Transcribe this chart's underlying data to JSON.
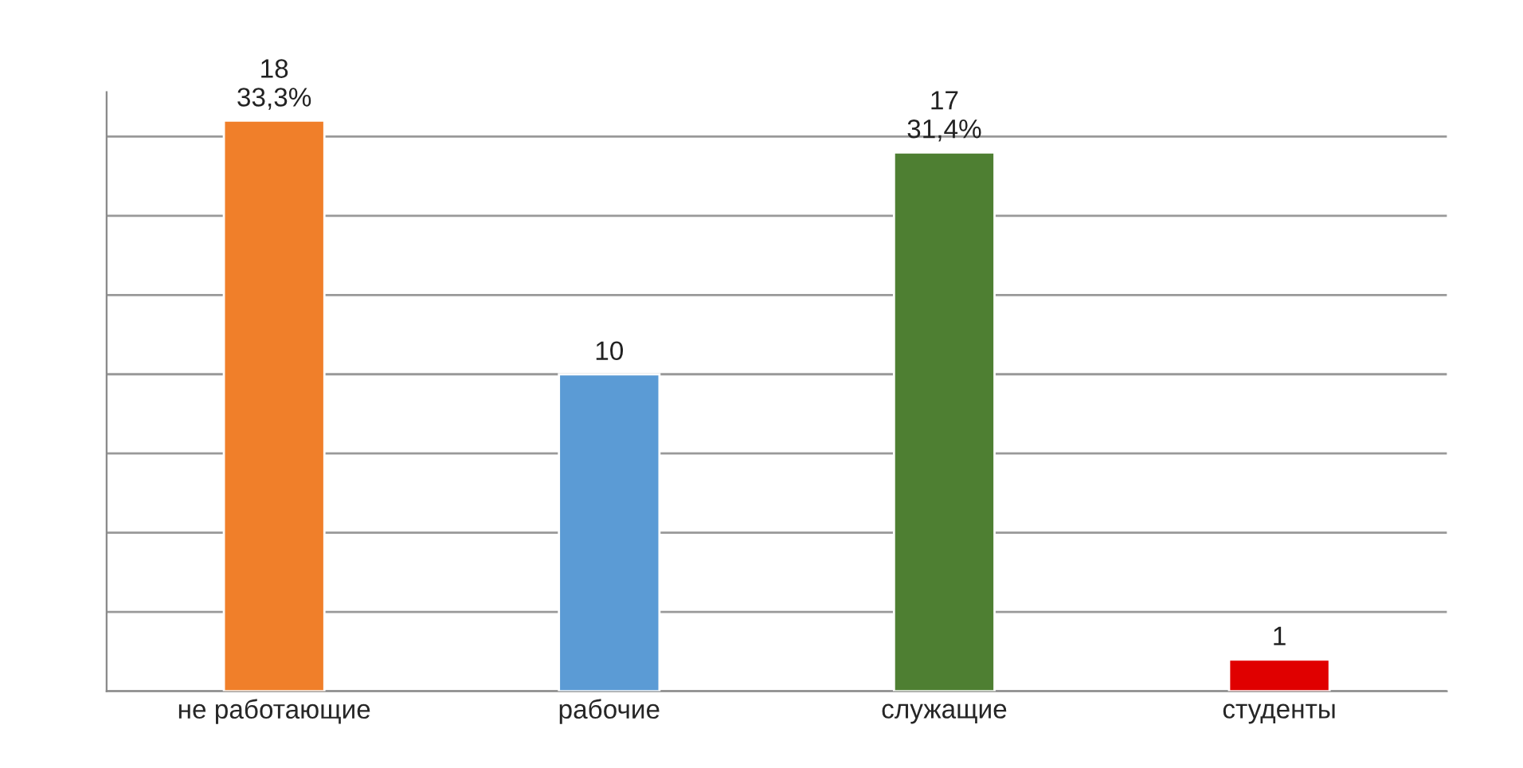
{
  "chart_data": {
    "type": "bar",
    "categories": [
      "не работающие",
      "рабочие",
      "служащие",
      "студенты"
    ],
    "values": [
      18,
      10,
      17,
      1
    ],
    "colors": [
      "#f07f2a",
      "#5b9bd5",
      "#4e7f32",
      "#e00000"
    ],
    "value_labels": [
      "18\n33,3%",
      "10",
      "17\n31,4%",
      "1"
    ],
    "grid": "y",
    "tick_labels": "x"
  }
}
